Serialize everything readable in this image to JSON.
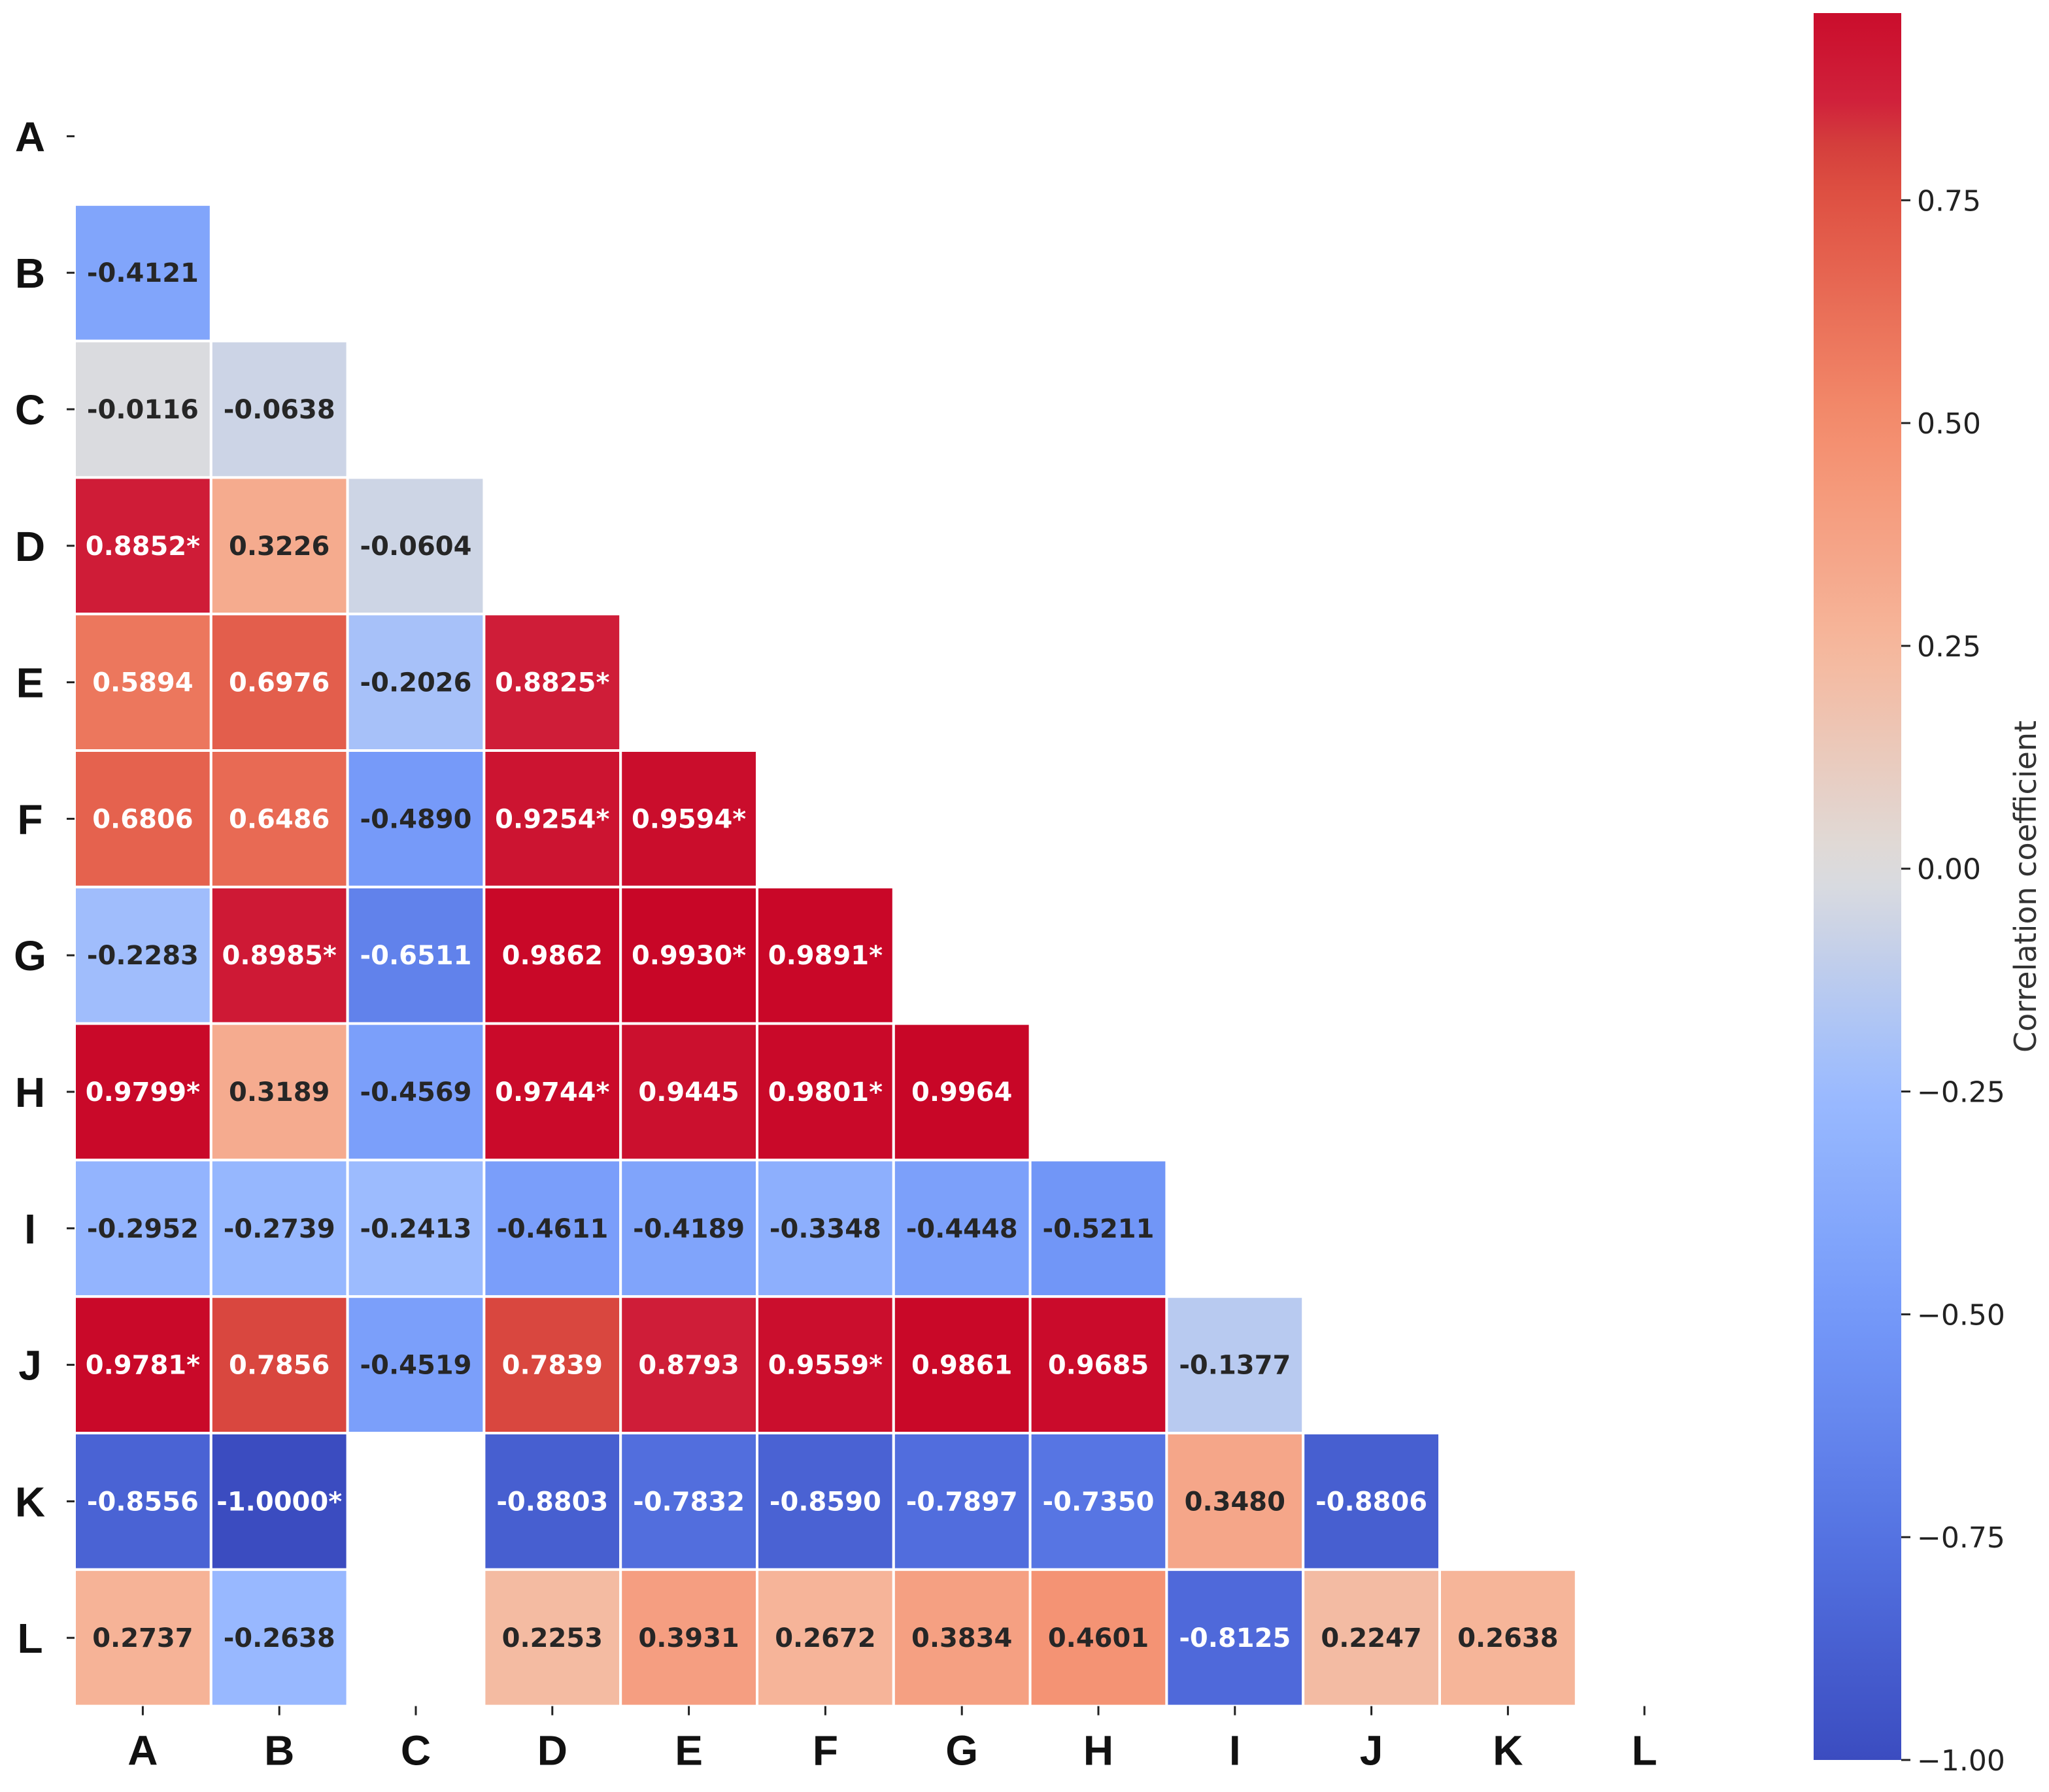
{
  "chart_data": {
    "type": "heatmap",
    "title": "",
    "variables": [
      "A",
      "B",
      "C",
      "D",
      "E",
      "F",
      "G",
      "H",
      "I",
      "J",
      "K",
      "L"
    ],
    "rows": [
      "A",
      "B",
      "C",
      "D",
      "E",
      "F",
      "G",
      "H",
      "I",
      "J",
      "K",
      "L"
    ],
    "cols": [
      "A",
      "B",
      "C",
      "D",
      "E",
      "F",
      "G",
      "H",
      "I",
      "J",
      "K",
      "L"
    ],
    "cells": [
      {
        "row": "B",
        "col": "A",
        "value": -0.4121,
        "label": "-0.4121"
      },
      {
        "row": "C",
        "col": "A",
        "value": -0.0116,
        "label": "-0.0116"
      },
      {
        "row": "C",
        "col": "B",
        "value": -0.0638,
        "label": "-0.0638"
      },
      {
        "row": "D",
        "col": "A",
        "value": 0.8852,
        "label": "0.8852*"
      },
      {
        "row": "D",
        "col": "B",
        "value": 0.3226,
        "label": "0.3226"
      },
      {
        "row": "D",
        "col": "C",
        "value": -0.0604,
        "label": "-0.0604"
      },
      {
        "row": "E",
        "col": "A",
        "value": 0.5894,
        "label": "0.5894"
      },
      {
        "row": "E",
        "col": "B",
        "value": 0.6976,
        "label": "0.6976"
      },
      {
        "row": "E",
        "col": "C",
        "value": -0.2026,
        "label": "-0.2026"
      },
      {
        "row": "E",
        "col": "D",
        "value": 0.8825,
        "label": "0.8825*"
      },
      {
        "row": "F",
        "col": "A",
        "value": 0.6806,
        "label": "0.6806"
      },
      {
        "row": "F",
        "col": "B",
        "value": 0.6486,
        "label": "0.6486"
      },
      {
        "row": "F",
        "col": "C",
        "value": -0.489,
        "label": "-0.4890"
      },
      {
        "row": "F",
        "col": "D",
        "value": 0.9254,
        "label": "0.9254*"
      },
      {
        "row": "F",
        "col": "E",
        "value": 0.9594,
        "label": "0.9594*"
      },
      {
        "row": "G",
        "col": "A",
        "value": -0.2283,
        "label": "-0.2283"
      },
      {
        "row": "G",
        "col": "B",
        "value": 0.8985,
        "label": "0.8985*"
      },
      {
        "row": "G",
        "col": "C",
        "value": -0.6511,
        "label": "-0.6511"
      },
      {
        "row": "G",
        "col": "D",
        "value": 0.9862,
        "label": "0.9862"
      },
      {
        "row": "G",
        "col": "E",
        "value": 0.993,
        "label": "0.9930*"
      },
      {
        "row": "G",
        "col": "F",
        "value": 0.9891,
        "label": "0.9891*"
      },
      {
        "row": "H",
        "col": "A",
        "value": 0.9799,
        "label": "0.9799*"
      },
      {
        "row": "H",
        "col": "B",
        "value": 0.3189,
        "label": "0.3189"
      },
      {
        "row": "H",
        "col": "C",
        "value": -0.4569,
        "label": "-0.4569"
      },
      {
        "row": "H",
        "col": "D",
        "value": 0.9744,
        "label": "0.9744*"
      },
      {
        "row": "H",
        "col": "E",
        "value": 0.9445,
        "label": "0.9445"
      },
      {
        "row": "H",
        "col": "F",
        "value": 0.9801,
        "label": "0.9801*"
      },
      {
        "row": "H",
        "col": "G",
        "value": 0.9964,
        "label": "0.9964"
      },
      {
        "row": "I",
        "col": "A",
        "value": -0.2952,
        "label": "-0.2952"
      },
      {
        "row": "I",
        "col": "B",
        "value": -0.2739,
        "label": "-0.2739"
      },
      {
        "row": "I",
        "col": "C",
        "value": -0.2413,
        "label": "-0.2413"
      },
      {
        "row": "I",
        "col": "D",
        "value": -0.4611,
        "label": "-0.4611"
      },
      {
        "row": "I",
        "col": "E",
        "value": -0.4189,
        "label": "-0.4189"
      },
      {
        "row": "I",
        "col": "F",
        "value": -0.3348,
        "label": "-0.3348"
      },
      {
        "row": "I",
        "col": "G",
        "value": -0.4448,
        "label": "-0.4448"
      },
      {
        "row": "I",
        "col": "H",
        "value": -0.5211,
        "label": "-0.5211"
      },
      {
        "row": "J",
        "col": "A",
        "value": 0.9781,
        "label": "0.9781*"
      },
      {
        "row": "J",
        "col": "B",
        "value": 0.7856,
        "label": "0.7856"
      },
      {
        "row": "J",
        "col": "C",
        "value": -0.4519,
        "label": "-0.4519"
      },
      {
        "row": "J",
        "col": "D",
        "value": 0.7839,
        "label": "0.7839"
      },
      {
        "row": "J",
        "col": "E",
        "value": 0.8793,
        "label": "0.8793"
      },
      {
        "row": "J",
        "col": "F",
        "value": 0.9559,
        "label": "0.9559*"
      },
      {
        "row": "J",
        "col": "G",
        "value": 0.9861,
        "label": "0.9861"
      },
      {
        "row": "J",
        "col": "H",
        "value": 0.9685,
        "label": "0.9685"
      },
      {
        "row": "J",
        "col": "I",
        "value": -0.1377,
        "label": "-0.1377"
      },
      {
        "row": "K",
        "col": "A",
        "value": -0.8556,
        "label": "-0.8556"
      },
      {
        "row": "K",
        "col": "B",
        "value": -1.0,
        "label": "-1.0000*"
      },
      {
        "row": "K",
        "col": "D",
        "value": -0.8803,
        "label": "-0.8803"
      },
      {
        "row": "K",
        "col": "E",
        "value": -0.7832,
        "label": "-0.7832"
      },
      {
        "row": "K",
        "col": "F",
        "value": -0.859,
        "label": "-0.8590"
      },
      {
        "row": "K",
        "col": "G",
        "value": -0.7897,
        "label": "-0.7897"
      },
      {
        "row": "K",
        "col": "H",
        "value": -0.735,
        "label": "-0.7350"
      },
      {
        "row": "K",
        "col": "I",
        "value": 0.348,
        "label": "0.3480"
      },
      {
        "row": "K",
        "col": "J",
        "value": -0.8806,
        "label": "-0.8806"
      },
      {
        "row": "L",
        "col": "A",
        "value": 0.2737,
        "label": "0.2737"
      },
      {
        "row": "L",
        "col": "B",
        "value": -0.2638,
        "label": "-0.2638"
      },
      {
        "row": "L",
        "col": "D",
        "value": 0.2253,
        "label": "0.2253"
      },
      {
        "row": "L",
        "col": "E",
        "value": 0.3931,
        "label": "0.3931"
      },
      {
        "row": "L",
        "col": "F",
        "value": 0.2672,
        "label": "0.2672"
      },
      {
        "row": "L",
        "col": "G",
        "value": 0.3834,
        "label": "0.3834"
      },
      {
        "row": "L",
        "col": "H",
        "value": 0.4601,
        "label": "0.4601"
      },
      {
        "row": "L",
        "col": "I",
        "value": -0.8125,
        "label": "-0.8125"
      },
      {
        "row": "L",
        "col": "J",
        "value": 0.2247,
        "label": "0.2247"
      },
      {
        "row": "L",
        "col": "K",
        "value": 0.2638,
        "label": "0.2638"
      }
    ],
    "vmin": -1.0,
    "vmax": 1.0,
    "colormap": "coolwarm",
    "colorbar": {
      "title": "Correlation coefficient",
      "range": [
        -1.0,
        0.96
      ],
      "ticks": [
        -1.0,
        -0.75,
        -0.5,
        -0.25,
        0.0,
        0.25,
        0.5,
        0.75
      ],
      "tick_labels": [
        "−1.00",
        "−0.75",
        "−0.50",
        "−0.25",
        "0.00",
        "0.25",
        "0.50",
        "0.75"
      ]
    },
    "colors": {
      "text_dark": "#262626",
      "text_light": "#ffffff",
      "gridline": "#ffffff",
      "axis_text": "#111111"
    }
  }
}
